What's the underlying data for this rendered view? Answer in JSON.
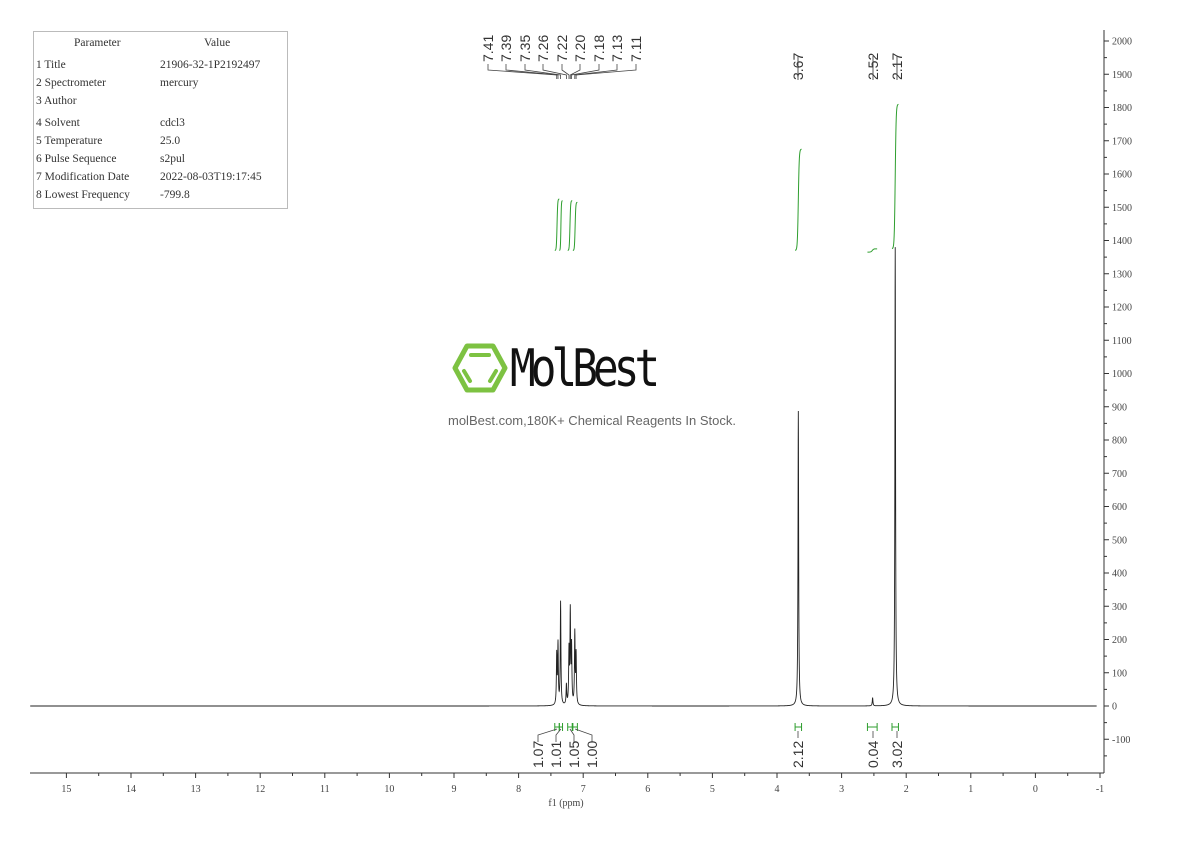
{
  "parameters": {
    "header": {
      "param": "Parameter",
      "value": "Value"
    },
    "rows": [
      {
        "param": "1 Title",
        "value": "21906-32-1P2192497"
      },
      {
        "param": "2 Spectrometer",
        "value": "mercury"
      },
      {
        "param": "3 Author",
        "value": ""
      },
      {
        "param": "4 Solvent",
        "value": "cdcl3"
      },
      {
        "param": "5 Temperature",
        "value": "25.0"
      },
      {
        "param": "6 Pulse Sequence",
        "value": "s2pul"
      },
      {
        "param": "7 Modification Date",
        "value": "2022-08-03T19:17:45"
      },
      {
        "param": "8 Lowest Frequency",
        "value": "-799.8"
      }
    ]
  },
  "watermark": {
    "brand": "MolBest",
    "tagline": "molBest.com,180K+ Chemical Reagents In Stock.",
    "brand_color": "#7dc242"
  },
  "chart_data": {
    "type": "line",
    "title": "",
    "xlabel": "f1 (ppm)",
    "ylabel": "",
    "xlim": [
      15.56,
      -1
    ],
    "ylim": [
      -200,
      2030
    ],
    "x_ticks": [
      15,
      14,
      13,
      12,
      11,
      10,
      9,
      8,
      7,
      6,
      5,
      4,
      3,
      2,
      1,
      0,
      -1
    ],
    "y_ticks": [
      2000,
      1900,
      1800,
      1700,
      1600,
      1500,
      1400,
      1300,
      1200,
      1100,
      1000,
      900,
      800,
      700,
      600,
      500,
      400,
      300,
      200,
      100,
      0,
      -100
    ],
    "grid": false,
    "line_color": "#222222",
    "integral_color": "#2e9e2e",
    "peaks": [
      {
        "ppm": 7.41,
        "height": 150
      },
      {
        "ppm": 7.39,
        "height": 180
      },
      {
        "ppm": 7.35,
        "height": 310
      },
      {
        "ppm": 7.26,
        "height": 60
      },
      {
        "ppm": 7.22,
        "height": 160
      },
      {
        "ppm": 7.2,
        "height": 275
      },
      {
        "ppm": 7.18,
        "height": 170
      },
      {
        "ppm": 7.13,
        "height": 215
      },
      {
        "ppm": 7.11,
        "height": 150
      },
      {
        "ppm": 3.67,
        "height": 887
      },
      {
        "ppm": 2.52,
        "height": 25
      },
      {
        "ppm": 2.17,
        "height": 1380
      }
    ],
    "peak_labels": [
      "7.41",
      "7.39",
      "7.35",
      "7.26",
      "7.22",
      "7.20",
      "7.18",
      "7.13",
      "7.11",
      "3.67",
      "2.52",
      "2.17"
    ],
    "integrals": [
      {
        "value": "1.07",
        "from": 7.44,
        "to": 7.37,
        "curve": [
          1370,
          1525
        ]
      },
      {
        "value": "1.01",
        "from": 7.37,
        "to": 7.32,
        "curve": [
          1370,
          1520
        ]
      },
      {
        "value": "1.05",
        "from": 7.24,
        "to": 7.17,
        "curve": [
          1370,
          1520
        ]
      },
      {
        "value": "1.00",
        "from": 7.16,
        "to": 7.09,
        "curve": [
          1370,
          1515
        ]
      },
      {
        "value": "2.12",
        "from": 3.72,
        "to": 3.62,
        "curve": [
          1370,
          1675
        ]
      },
      {
        "value": "0.04",
        "from": 2.6,
        "to": 2.45,
        "curve": [
          1365,
          1375
        ]
      },
      {
        "value": "3.02",
        "from": 2.22,
        "to": 2.12,
        "curve": [
          1375,
          1810
        ]
      }
    ]
  }
}
